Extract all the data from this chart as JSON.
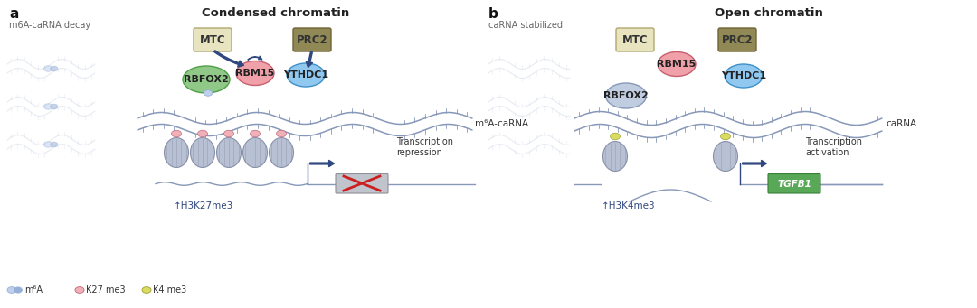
{
  "bg_color": "#ffffff",
  "panel_a_label": "a",
  "panel_b_label": "b",
  "panel_a_subtitle": "m6A-caRNA decay",
  "panel_b_subtitle": "caRNA stabilized",
  "panel_a_title": "Condensed chromatin",
  "panel_b_title": "Open chromatin",
  "mtc_color": "#e8e4c0",
  "mtc_edge": "#b0a870",
  "prc2_color": "#908855",
  "prc2_edge": "#706535",
  "rbfox2_color": "#90c888",
  "rbfox2_edge": "#50a048",
  "rbm15_color": "#f0a0a8",
  "rbm15_edge": "#c86070",
  "ythdc1_color": "#90c8f0",
  "ythdc1_edge": "#4090c8",
  "rbfox2b_color": "#c0cce0",
  "rbfox2b_edge": "#8898b8",
  "dna_color": "#8898b8",
  "dna_color_light": "#b8c4d8",
  "nucleosome_color": "#b8c0d4",
  "nucleosome_edge": "#8890a8",
  "k27_dot_color": "#f0b0b8",
  "k4_dot_color": "#d8dc60",
  "m6a_dot_color_light": "#c0d0ec",
  "m6a_dot_color_dark": "#98b0d8",
  "arrow_color": "#304880",
  "text_color": "#333333",
  "gene_box_color": "#58a858",
  "gene_box_edge": "#388038",
  "gene_box_color_gray": "#c0c4cc",
  "gene_box_edge_gray": "#909098",
  "cross_color": "#cc2020",
  "transcription_text": "Transcription\nrepression",
  "transcription_text_b": "Transcription\nactivation",
  "h3k27_text": "↑H3K27me3",
  "h3k4_text": "↑H3K4me3",
  "mrna_label_a": "m⁶A-caRNA",
  "mrna_label_b": "caRNA",
  "tgfb1_text": "TGFB1",
  "legend_m6a": "m⁶A",
  "legend_k27": "K27 me3",
  "legend_k4": "K4 me3"
}
